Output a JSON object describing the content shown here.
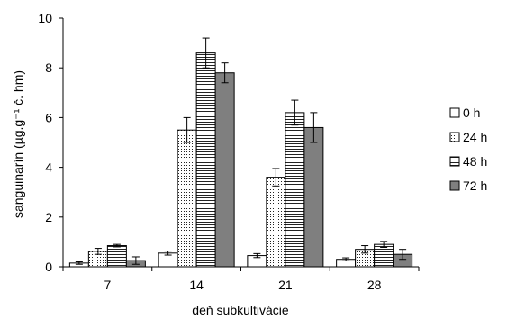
{
  "chart_data": {
    "type": "bar",
    "xlabel": "deň subkultivácie",
    "ylabel": "sanguinarín  (µg.g⁻¹ č. hm)",
    "categories": [
      "7",
      "14",
      "21",
      "28"
    ],
    "ylim": [
      0,
      10
    ],
    "yticks": [
      "0",
      "2",
      "4",
      "6",
      "8",
      "10"
    ],
    "grid": false,
    "legend_position": "right",
    "series": [
      {
        "name": "0 h",
        "fill": "white",
        "color": "#ffffff",
        "values": [
          0.15,
          0.55,
          0.45,
          0.3
        ],
        "errors": [
          0.05,
          0.08,
          0.08,
          0.06
        ]
      },
      {
        "name": "24 h",
        "fill": "dotted",
        "color": "#ffffff",
        "values": [
          0.62,
          5.5,
          3.6,
          0.7
        ],
        "errors": [
          0.12,
          0.5,
          0.35,
          0.15
        ]
      },
      {
        "name": "48 h",
        "fill": "horizontal",
        "color": "#ffffff",
        "values": [
          0.85,
          8.6,
          6.2,
          0.9
        ],
        "errors": [
          0.05,
          0.6,
          0.5,
          0.12
        ]
      },
      {
        "name": "72 h",
        "fill": "solid",
        "color": "#7f7f7f",
        "values": [
          0.25,
          7.8,
          5.6,
          0.5
        ],
        "errors": [
          0.15,
          0.4,
          0.6,
          0.2
        ]
      }
    ]
  }
}
